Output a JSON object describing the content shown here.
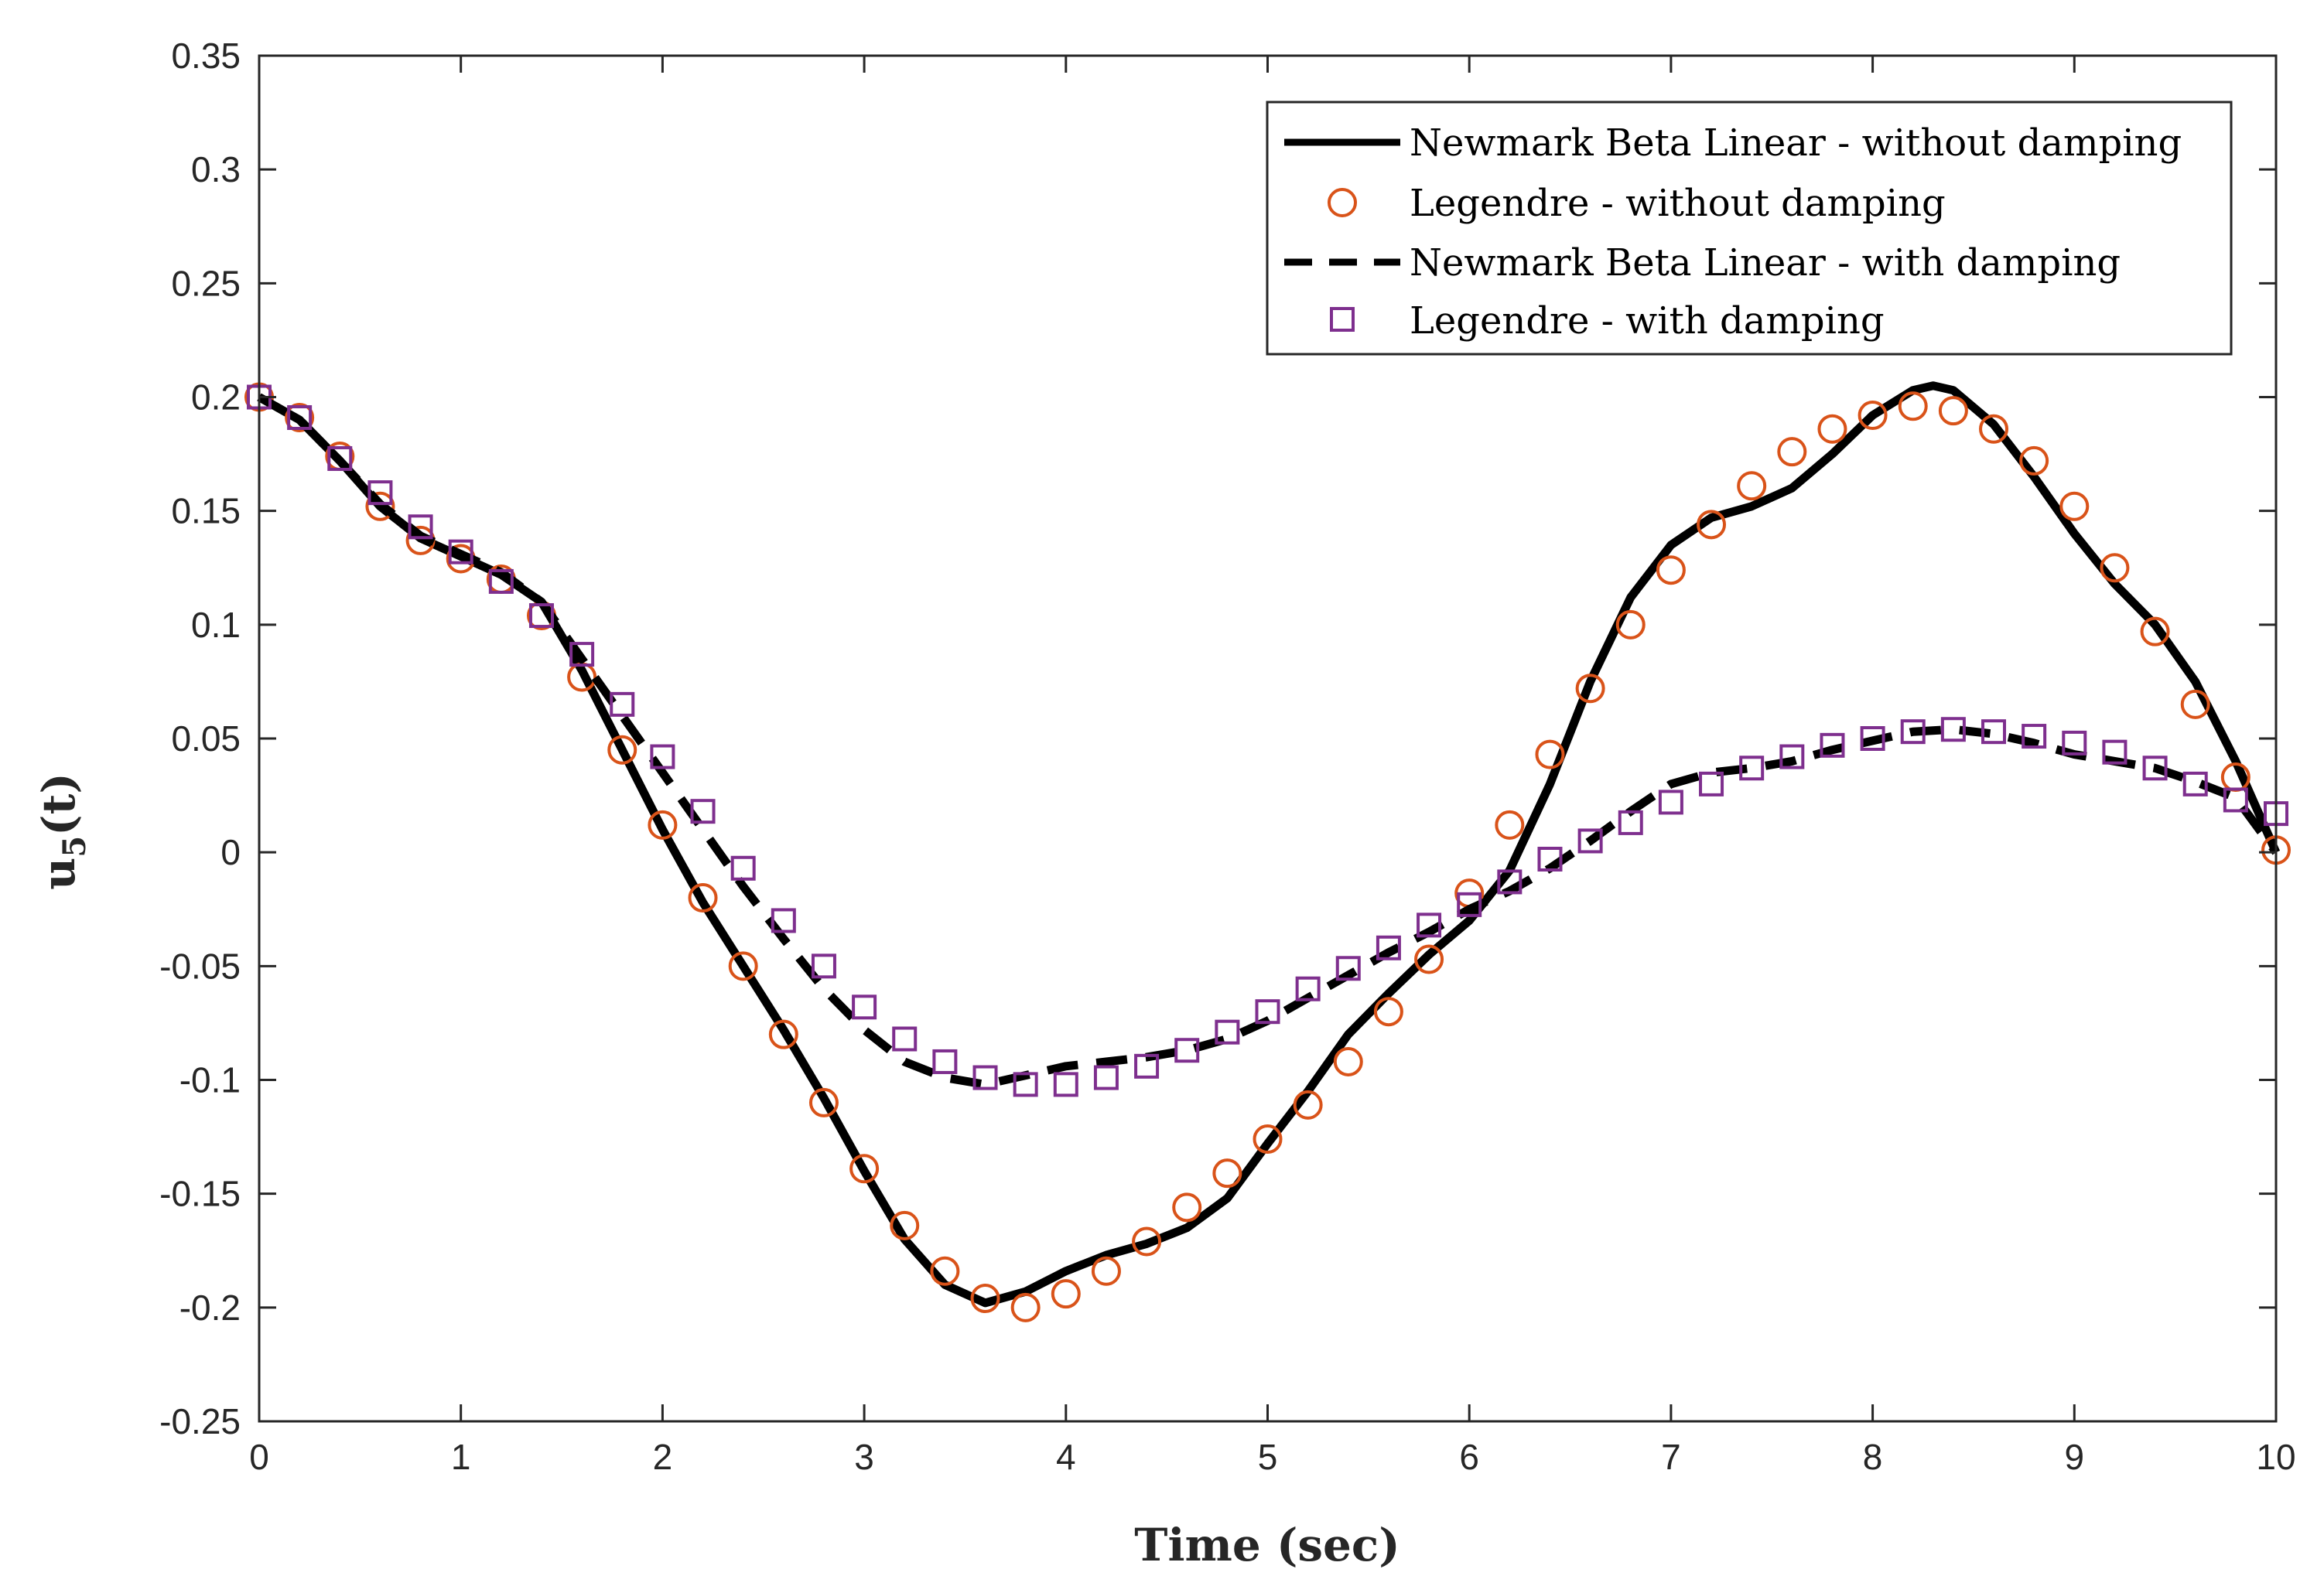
{
  "chart_data": {
    "type": "line",
    "title": "",
    "xlabel": "Time (sec)",
    "ylabel": {
      "base": "u",
      "subscript": "5",
      "suffix": "(t)"
    },
    "xlim": [
      0,
      10
    ],
    "ylim": [
      -0.25,
      0.35
    ],
    "xticks": [
      0,
      1,
      2,
      3,
      4,
      5,
      6,
      7,
      8,
      9,
      10
    ],
    "yticks": [
      -0.25,
      -0.2,
      -0.15,
      -0.1,
      -0.05,
      0,
      0.05,
      0.1,
      0.15,
      0.2,
      0.25,
      0.3,
      0.35
    ],
    "xtick_labels": [
      "0",
      "1",
      "2",
      "3",
      "4",
      "5",
      "6",
      "7",
      "8",
      "9",
      "10"
    ],
    "ytick_labels": [
      "-0.25",
      "-0.2",
      "-0.15",
      "-0.1",
      "-0.05",
      "0",
      "0.05",
      "0.1",
      "0.15",
      "0.2",
      "0.25",
      "0.3",
      "0.35"
    ],
    "grid": false,
    "legend_position": "top-right",
    "series": [
      {
        "name": "Newmark Beta Linear - without damping",
        "style": "solid-line",
        "color": "#000000",
        "x": [
          0,
          0.2,
          0.4,
          0.6,
          0.8,
          1.0,
          1.2,
          1.4,
          1.6,
          1.8,
          2.0,
          2.2,
          2.4,
          2.6,
          2.8,
          3.0,
          3.2,
          3.4,
          3.6,
          3.8,
          4.0,
          4.2,
          4.4,
          4.6,
          4.8,
          5.0,
          5.2,
          5.4,
          5.6,
          5.8,
          6.0,
          6.2,
          6.4,
          6.6,
          6.8,
          7.0,
          7.2,
          7.4,
          7.6,
          7.8,
          8.0,
          8.2,
          8.3,
          8.4,
          8.6,
          8.8,
          9.0,
          9.2,
          9.4,
          9.6,
          9.8,
          10.0
        ],
        "y": [
          0.2,
          0.19,
          0.172,
          0.152,
          0.138,
          0.13,
          0.122,
          0.11,
          0.08,
          0.045,
          0.01,
          -0.022,
          -0.05,
          -0.078,
          -0.108,
          -0.14,
          -0.17,
          -0.19,
          -0.198,
          -0.193,
          -0.184,
          -0.177,
          -0.172,
          -0.165,
          -0.152,
          -0.128,
          -0.105,
          -0.08,
          -0.062,
          -0.045,
          -0.03,
          -0.008,
          0.03,
          0.075,
          0.112,
          0.135,
          0.147,
          0.152,
          0.16,
          0.175,
          0.192,
          0.203,
          0.205,
          0.203,
          0.188,
          0.165,
          0.14,
          0.118,
          0.1,
          0.075,
          0.04,
          0.0
        ]
      },
      {
        "name": "Legendre - without damping",
        "style": "circle-markers",
        "color": "#d95319",
        "x": [
          0,
          0.2,
          0.4,
          0.6,
          0.8,
          1.0,
          1.2,
          1.4,
          1.6,
          1.8,
          2.0,
          2.2,
          2.4,
          2.6,
          2.8,
          3.0,
          3.2,
          3.4,
          3.6,
          3.8,
          4.0,
          4.2,
          4.4,
          4.6,
          4.8,
          5.0,
          5.2,
          5.4,
          5.6,
          5.8,
          6.0,
          6.2,
          6.4,
          6.6,
          6.8,
          7.0,
          7.2,
          7.4,
          7.6,
          7.8,
          8.0,
          8.2,
          8.4,
          8.6,
          8.8,
          9.0,
          9.2,
          9.4,
          9.6,
          9.8,
          10.0
        ],
        "y": [
          0.2,
          0.191,
          0.174,
          0.152,
          0.137,
          0.129,
          0.12,
          0.104,
          0.077,
          0.045,
          0.012,
          -0.02,
          -0.05,
          -0.08,
          -0.11,
          -0.139,
          -0.164,
          -0.184,
          -0.196,
          -0.2,
          -0.194,
          -0.184,
          -0.171,
          -0.156,
          -0.141,
          -0.126,
          -0.111,
          -0.092,
          -0.07,
          -0.047,
          -0.018,
          0.012,
          0.043,
          0.072,
          0.1,
          0.124,
          0.144,
          0.161,
          0.176,
          0.186,
          0.192,
          0.196,
          0.194,
          0.186,
          0.172,
          0.152,
          0.125,
          0.097,
          0.065,
          0.033,
          0.001
        ]
      },
      {
        "name": "Newmark Beta Linear - with damping",
        "style": "dashed-line",
        "color": "#000000",
        "x": [
          0,
          0.2,
          0.4,
          0.6,
          0.8,
          1.0,
          1.2,
          1.4,
          1.6,
          1.8,
          2.0,
          2.2,
          2.4,
          2.6,
          2.8,
          3.0,
          3.2,
          3.4,
          3.6,
          3.8,
          4.0,
          4.2,
          4.4,
          4.6,
          4.8,
          5.0,
          5.2,
          5.4,
          5.6,
          5.8,
          6.0,
          6.2,
          6.4,
          6.6,
          6.8,
          7.0,
          7.2,
          7.4,
          7.6,
          7.8,
          8.0,
          8.2,
          8.4,
          8.6,
          8.8,
          9.0,
          9.2,
          9.4,
          9.6,
          9.8,
          10.0
        ],
        "y": [
          0.2,
          0.19,
          0.172,
          0.153,
          0.139,
          0.131,
          0.123,
          0.11,
          0.085,
          0.06,
          0.035,
          0.01,
          -0.015,
          -0.038,
          -0.06,
          -0.078,
          -0.092,
          -0.099,
          -0.102,
          -0.098,
          -0.094,
          -0.092,
          -0.09,
          -0.087,
          -0.082,
          -0.074,
          -0.064,
          -0.054,
          -0.044,
          -0.035,
          -0.025,
          -0.017,
          -0.007,
          0.005,
          0.018,
          0.03,
          0.035,
          0.037,
          0.04,
          0.045,
          0.049,
          0.053,
          0.054,
          0.052,
          0.048,
          0.043,
          0.04,
          0.037,
          0.031,
          0.024,
          0.0
        ]
      },
      {
        "name": "Legendre - with damping",
        "style": "square-markers",
        "color": "#7e2f8e",
        "x": [
          0,
          0.2,
          0.4,
          0.6,
          0.8,
          1.0,
          1.2,
          1.4,
          1.6,
          1.8,
          2.0,
          2.2,
          2.4,
          2.6,
          2.8,
          3.0,
          3.2,
          3.4,
          3.6,
          3.8,
          4.0,
          4.2,
          4.4,
          4.6,
          4.8,
          5.0,
          5.2,
          5.4,
          5.6,
          5.8,
          6.0,
          6.2,
          6.4,
          6.6,
          6.8,
          7.0,
          7.2,
          7.4,
          7.6,
          7.8,
          8.0,
          8.2,
          8.4,
          8.6,
          8.8,
          9.0,
          9.2,
          9.4,
          9.6,
          9.8,
          10.0
        ],
        "y": [
          0.2,
          0.191,
          0.173,
          0.158,
          0.143,
          0.132,
          0.119,
          0.104,
          0.087,
          0.065,
          0.042,
          0.018,
          -0.007,
          -0.03,
          -0.05,
          -0.068,
          -0.082,
          -0.092,
          -0.099,
          -0.102,
          -0.102,
          -0.099,
          -0.094,
          -0.087,
          -0.079,
          -0.07,
          -0.06,
          -0.051,
          -0.042,
          -0.032,
          -0.023,
          -0.013,
          -0.003,
          0.005,
          0.013,
          0.022,
          0.03,
          0.037,
          0.042,
          0.047,
          0.05,
          0.053,
          0.054,
          0.053,
          0.051,
          0.048,
          0.044,
          0.037,
          0.03,
          0.023,
          0.017
        ]
      }
    ]
  }
}
